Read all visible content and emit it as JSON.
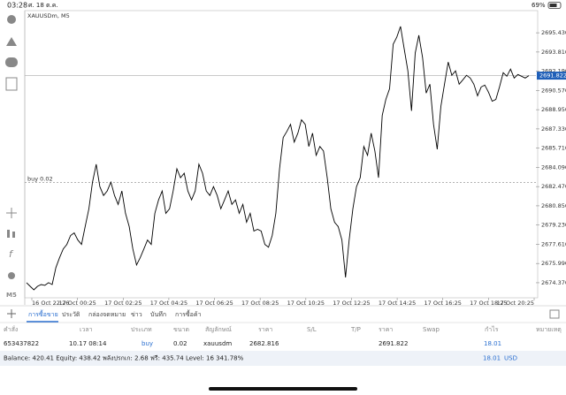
{
  "status_bar": {
    "time": "03:28",
    "date": "ศ. 18 ต.ค.",
    "battery": "69%"
  },
  "chart_data": {
    "type": "line",
    "symbol_label": "XAUUSDm, M5",
    "color": "#000000",
    "values": [
      2674.37,
      2674.07,
      2673.77,
      2674.07,
      2674.22,
      2674.15,
      2674.37,
      2674.22,
      2675.65,
      2676.47,
      2677.22,
      2677.6,
      2678.35,
      2678.57,
      2677.97,
      2677.6,
      2679.1,
      2680.6,
      2682.85,
      2684.35,
      2682.47,
      2681.72,
      2682.1,
      2682.85,
      2681.72,
      2680.97,
      2682.1,
      2680.22,
      2679.1,
      2677.22,
      2675.87,
      2676.47,
      2677.22,
      2677.97,
      2677.6,
      2680.22,
      2681.35,
      2682.1,
      2680.22,
      2680.6,
      2682.1,
      2683.97,
      2683.22,
      2683.6,
      2682.1,
      2681.35,
      2682.1,
      2684.35,
      2683.6,
      2682.1,
      2681.72,
      2682.47,
      2681.72,
      2680.6,
      2681.35,
      2682.1,
      2680.97,
      2681.35,
      2680.22,
      2680.97,
      2679.47,
      2680.22,
      2678.72,
      2678.87,
      2678.72,
      2677.6,
      2677.37,
      2678.35,
      2680.22,
      2683.97,
      2686.6,
      2687.12,
      2687.72,
      2686.22,
      2686.97,
      2688.1,
      2687.72,
      2685.85,
      2686.97,
      2685.1,
      2685.85,
      2685.47,
      2683.22,
      2680.6,
      2679.47,
      2679.1,
      2677.97,
      2674.82,
      2677.97,
      2680.6,
      2682.47,
      2683.22,
      2685.85,
      2685.1,
      2686.97,
      2685.47,
      2683.22,
      2688.47,
      2689.82,
      2690.72,
      2694.47,
      2695.07,
      2695.97,
      2694.1,
      2692.22,
      2688.85,
      2693.72,
      2695.22,
      2693.35,
      2690.35,
      2691.1,
      2687.72,
      2685.62,
      2689.22,
      2691.1,
      2692.97,
      2691.85,
      2692.22,
      2691.1,
      2691.47,
      2691.85,
      2691.62,
      2691.1,
      2690.12,
      2690.87,
      2691.02,
      2690.42,
      2689.67,
      2689.82,
      2690.87,
      2692.07,
      2691.77,
      2692.37,
      2691.62,
      2691.92,
      2691.77,
      2691.62,
      2691.82
    ],
    "ylim": [
      2673.1,
      2697.3
    ],
    "yticks": [
      {
        "value": 2695.43,
        "label": "2695.430"
      },
      {
        "value": 2693.81,
        "label": "2693.810"
      },
      {
        "value": 2692.19,
        "label": "2692.190"
      },
      {
        "value": 2690.57,
        "label": "2690.570"
      },
      {
        "value": 2688.95,
        "label": "2688.950"
      },
      {
        "value": 2687.33,
        "label": "2687.330"
      },
      {
        "value": 2685.71,
        "label": "2685.710"
      },
      {
        "value": 2684.09,
        "label": "2684.090"
      },
      {
        "value": 2682.47,
        "label": "2682.470"
      },
      {
        "value": 2680.85,
        "label": "2680.850"
      },
      {
        "value": 2679.23,
        "label": "2679.230"
      },
      {
        "value": 2677.61,
        "label": "2677.610"
      },
      {
        "value": 2675.99,
        "label": "2675.990"
      },
      {
        "value": 2674.37,
        "label": "2674.370"
      }
    ],
    "time_labels": [
      "16 Oct 22:26",
      "17 Oct 00:25",
      "17 Oct 02:25",
      "17 Oct 04:25",
      "17 Oct 06:25",
      "17 Oct 08:25",
      "17 Oct 10:25",
      "17 Oct 12:25",
      "17 Oct 14:25",
      "17 Oct 16:25",
      "17 Oct 18:25",
      "17 Oct 20:25"
    ],
    "current_price": 2691.822,
    "order_line": {
      "label": "buy 0.02",
      "value": 2682.816
    }
  },
  "tabs": [
    "การซื้อขาย",
    "ประวัติ",
    "กล่องจดหมาย",
    "ข่าว",
    "บันทึก",
    "การซื้อค้า"
  ],
  "orders": {
    "columns": [
      "คำสั่ง",
      "เวลา",
      "ประเภท",
      "ขนาด",
      "สัญลักษณ์",
      "ราคา",
      "S/L",
      "T/P",
      "ราคา",
      "Swap",
      "กำไร",
      "หมายเหตุ"
    ],
    "rows": [
      {
        "order": "653437822",
        "time": "10.17 08:14",
        "type": "buy",
        "volume": 0.02,
        "symbol": "xauusdm",
        "price": 2682.816,
        "current_price": 2691.822,
        "profit": 18.01
      }
    ]
  },
  "summary": {
    "text": "Balance: 420.41  Equity: 438.42  พลังปรกเก: 2.68  ฟรี: 435.74  Level: 16 341.78%",
    "profit": 18.01,
    "currency": "USD"
  }
}
